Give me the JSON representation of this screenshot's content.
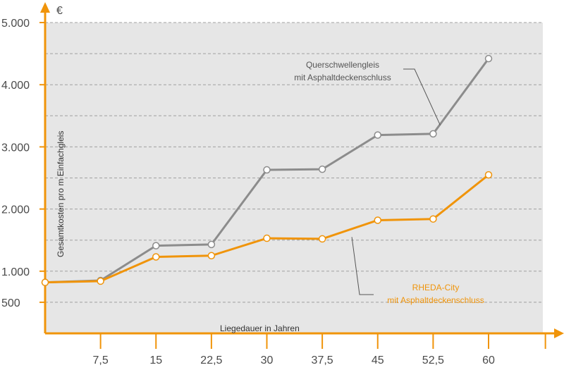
{
  "chart_data": {
    "type": "line",
    "currency_symbol": "€",
    "ylabel": "Gesamtkosten pro m Einfachgleis",
    "xlabel": "Liegedauer in Jahren",
    "x": [
      0,
      7.5,
      15,
      22.5,
      30,
      37.5,
      45,
      52.5,
      60
    ],
    "x_tick_labels": [
      "7,5",
      "15",
      "22,5",
      "30",
      "37,5",
      "45",
      "52,5",
      "60"
    ],
    "x_tick_values": [
      7.5,
      15,
      22.5,
      30,
      37.5,
      45,
      52.5,
      60
    ],
    "xlim": [
      0,
      67.5
    ],
    "y_tick_labels": [
      "500",
      "1.000",
      "2.000",
      "3.000",
      "4.000",
      "5.000"
    ],
    "y_tick_values": [
      500,
      1000,
      2000,
      3000,
      4000,
      5000
    ],
    "ylim": [
      0,
      5000
    ],
    "grid": true,
    "series": [
      {
        "label_line1": "Querschwellengleis",
        "label_line2": "mit Asphaltdeckenschluss",
        "color": "#8c8c8c",
        "values": [
          820,
          850,
          1410,
          1430,
          2630,
          2640,
          3190,
          3210,
          4420
        ]
      },
      {
        "label_line1": "RHEDA-City",
        "label_line2": "mit Asphaltdeckenschluss",
        "color": "#f0940a",
        "values": [
          820,
          840,
          1230,
          1250,
          1530,
          1520,
          1820,
          1840,
          2550
        ]
      }
    ],
    "colors": {
      "axis": "#f0940a",
      "plot_background": "#e6e6e6",
      "grid": "#a0a0a0"
    }
  }
}
